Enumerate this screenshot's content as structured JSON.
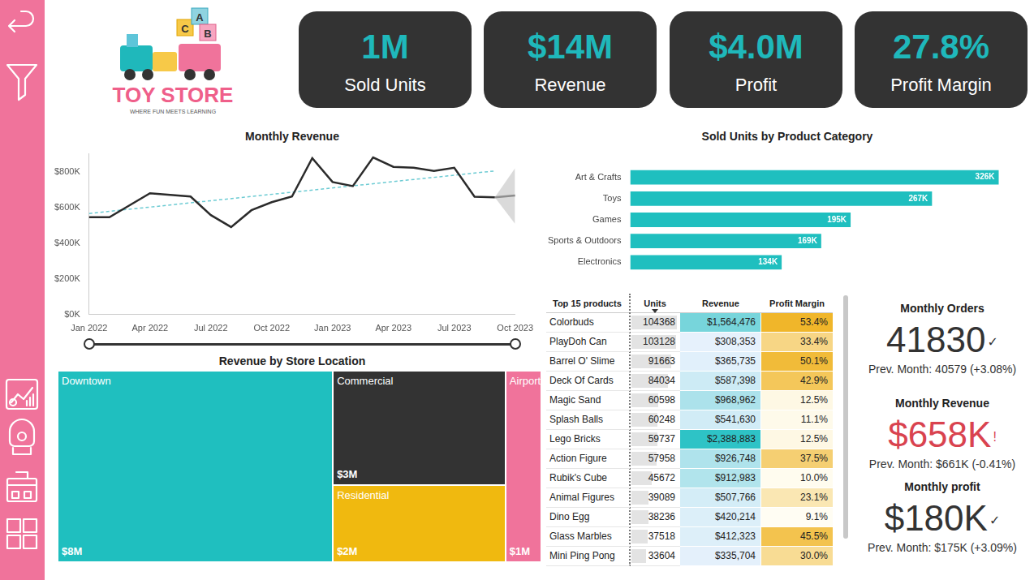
{
  "logo": {
    "title": "TOY STORE",
    "tagline": "WHERE FUN MEETS LEARNING",
    "blocks": [
      "C",
      "A",
      "B"
    ]
  },
  "kpis": [
    {
      "value": "1M",
      "label": "Sold Units",
      "color": "#1fb8bb"
    },
    {
      "value": "$14M",
      "label": "Revenue",
      "color": "#1fb8bb"
    },
    {
      "value": "$4.0M",
      "label": "Profit",
      "color": "#1fb8bb"
    },
    {
      "value": "27.8%",
      "label": "Profit Margin",
      "color": "#1fb8bb"
    }
  ],
  "chart_data": [
    {
      "type": "line",
      "title": "Monthly Revenue",
      "categories": [
        "Jan 2022",
        null,
        null,
        "Apr 2022",
        null,
        null,
        "Jul 2022",
        null,
        null,
        "Oct 2022",
        null,
        null,
        "Jan 2023",
        null,
        null,
        "Apr 2023",
        null,
        null,
        "Jul 2023",
        null,
        null,
        "Oct 2023"
      ],
      "series": [
        {
          "color": "#2b2b2b",
          "values": [
            545,
            545,
            612,
            679,
            670,
            661,
            557,
            490,
            584,
            629,
            661,
            876,
            742,
            719,
            880,
            827,
            822,
            804,
            822,
            660,
            656,
            null
          ]
        },
        {
          "color": "#6ccbd3",
          "line_style": "dashed",
          "values": [
            566,
            null,
            null,
            null,
            null,
            null,
            null,
            null,
            null,
            null,
            null,
            null,
            null,
            null,
            null,
            null,
            null,
            null,
            null,
            null,
            804,
            null
          ]
        },
        {
          "color": "#8a8a8a",
          "values": [
            null,
            null,
            null,
            null,
            null,
            null,
            null,
            null,
            null,
            null,
            null,
            null,
            null,
            null,
            null,
            null,
            null,
            null,
            null,
            null,
            656,
            667
          ],
          "upper": [
            null,
            null,
            null,
            null,
            null,
            null,
            null,
            null,
            null,
            null,
            null,
            null,
            null,
            null,
            null,
            null,
            null,
            null,
            null,
            null,
            656,
            820
          ],
          "lower": [
            null,
            null,
            null,
            null,
            null,
            null,
            null,
            null,
            null,
            null,
            null,
            null,
            null,
            null,
            null,
            null,
            null,
            null,
            null,
            null,
            656,
            508
          ]
        }
      ],
      "ylim": [
        0,
        900
      ],
      "yticks": [
        {
          "value": 0,
          "label": "$0K"
        },
        {
          "value": 200,
          "label": "$200K"
        },
        {
          "value": 400,
          "label": "$400K"
        },
        {
          "value": 600,
          "label": "$600K"
        },
        {
          "value": 800,
          "label": "$800K"
        }
      ],
      "grid": false
    },
    {
      "type": "bar",
      "title": "Sold Units by Product Category",
      "orientation": "horizontal",
      "categories": [
        "Art & Crafts",
        "Toys",
        "Games",
        "Sports & Outdoors",
        "Electronics"
      ],
      "values": [
        326,
        267,
        195,
        169,
        134
      ],
      "value_labels": [
        "326K",
        "267K",
        "195K",
        "169K",
        "134K"
      ],
      "data_labels": true,
      "color": "#1fbfbf",
      "xlim": [
        0,
        340
      ],
      "xticks": [],
      "tick_labels": "y",
      "grid": false
    }
  ],
  "treemap": {
    "title": "Revenue by Store Location",
    "items": [
      {
        "name": "Downtown",
        "value": 8,
        "label": "$8M",
        "color": "#1fbfbf"
      },
      {
        "name": "Commercial",
        "value": 3,
        "label": "$3M",
        "color": "#333333"
      },
      {
        "name": "Residential",
        "value": 2,
        "label": "$2M",
        "color": "#f0b90f"
      },
      {
        "name": "Airport",
        "value": 1,
        "label": "$1M",
        "color": "#f0739b"
      }
    ]
  },
  "table": {
    "columns": [
      "Top 15 products",
      "Units",
      "Revenue",
      "Profit Margin"
    ],
    "rows": [
      [
        "Colorbuds",
        104368,
        "$1,564,476",
        "53.4%"
      ],
      [
        "PlayDoh Can",
        103128,
        "$308,353",
        "33.4%"
      ],
      [
        "Barrel O' Slime",
        91663,
        "$365,735",
        "50.1%"
      ],
      [
        "Deck Of Cards",
        84034,
        "$587,398",
        "42.9%"
      ],
      [
        "Magic Sand",
        60598,
        "$968,962",
        "12.5%"
      ],
      [
        "Splash Balls",
        60248,
        "$541,630",
        "11.1%"
      ],
      [
        "Lego Bricks",
        59737,
        "$2,388,883",
        "12.5%"
      ],
      [
        "Action Figure",
        57958,
        "$926,748",
        "37.5%"
      ],
      [
        "Rubik's Cube",
        45672,
        "$912,983",
        "10.0%"
      ],
      [
        "Animal Figures",
        39089,
        "$507,766",
        "23.1%"
      ],
      [
        "Dino Egg",
        38236,
        "$420,214",
        "9.1%"
      ],
      [
        "Glass Marbles",
        37518,
        "$412,323",
        "45.5%"
      ],
      [
        "Mini Ping Pong",
        33604,
        "$335,704",
        "30.0%"
      ]
    ]
  },
  "cards": [
    {
      "title": "Monthly Orders",
      "value": "41830",
      "status": "✓",
      "previous": "Prev. Month: 40579 (+3.08%)",
      "color": "#333333"
    },
    {
      "title": "Monthly Revenue",
      "value": "$658K",
      "status": "!",
      "previous": "Prev. Month: $661K (-0.41%)",
      "color": "#d9434f"
    },
    {
      "title": "Monthly profit",
      "value": "$180K",
      "status": "✓",
      "previous": "Prev. Month: $175K (+3.09%)",
      "color": "#333333"
    }
  ]
}
